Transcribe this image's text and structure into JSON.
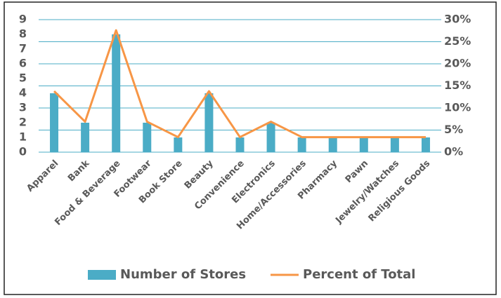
{
  "chart_data": {
    "type": "bar_line",
    "categories": [
      "Apparel",
      "Bank",
      "Food & Beverage",
      "Footwear",
      "Book Store",
      "Beauty",
      "Convenience",
      "Electronics",
      "Home/Accessories",
      "Pharmacy",
      "Pawn",
      "Jewelry/Watches",
      "Religious Goods"
    ],
    "series": [
      {
        "name": "Number of Stores",
        "type": "bar",
        "color": "#4bacc6",
        "values": [
          4,
          2,
          8,
          2,
          1,
          4,
          1,
          2,
          1,
          1,
          1,
          1,
          1
        ]
      },
      {
        "name": "Percent of Total",
        "type": "line",
        "axis": "y2",
        "color": "#f79646",
        "values": [
          13.8,
          6.9,
          27.6,
          6.9,
          3.4,
          13.8,
          3.4,
          6.9,
          3.4,
          3.4,
          3.4,
          3.4,
          3.4
        ]
      }
    ],
    "ylim": [
      0,
      9
    ],
    "yticks": [
      0,
      1,
      2,
      3,
      4,
      5,
      6,
      7,
      8,
      9
    ],
    "y2lim": [
      0,
      30
    ],
    "y2ticks": [
      {
        "value": 0,
        "label": "0%"
      },
      {
        "value": 5,
        "label": "5%"
      },
      {
        "value": 10,
        "label": "10%"
      },
      {
        "value": 15,
        "label": "15%"
      },
      {
        "value": 20,
        "label": "20%"
      },
      {
        "value": 25,
        "label": "25%"
      },
      {
        "value": 30,
        "label": "30%"
      }
    ],
    "grid": true,
    "legend": "bottom"
  }
}
